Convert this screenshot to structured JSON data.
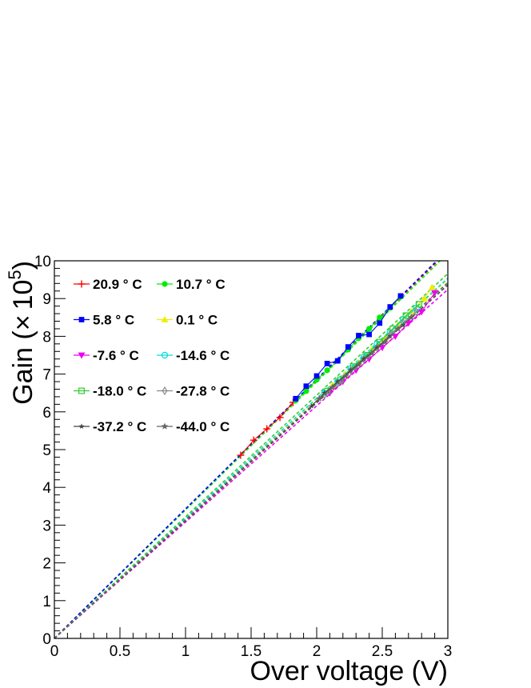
{
  "chart_data": {
    "type": "scatter",
    "title": "",
    "xlabel": "Over voltage (V)",
    "ylabel_text": "Gain (",
    "ylabel_times": "×",
    "ylabel_base": "10",
    "ylabel_exp": "5",
    "ylabel_close": ")",
    "xlim": [
      0,
      3
    ],
    "ylim": [
      0,
      10
    ],
    "x_ticks": [
      "0",
      "0.5",
      "1",
      "1.5",
      "2",
      "2.5",
      "3"
    ],
    "y_ticks": [
      "0",
      "1",
      "2",
      "3",
      "4",
      "5",
      "6",
      "7",
      "8",
      "9",
      "10"
    ],
    "grid": false,
    "legend_position": "top-left",
    "series": [
      {
        "name": "20.9 ° C",
        "color": "#ff0000",
        "marker": "plus",
        "x": [
          1.42,
          1.52,
          1.62,
          1.72,
          1.82
        ],
        "y": [
          4.85,
          5.25,
          5.55,
          5.85,
          6.25
        ],
        "fit_slope": 3.42
      },
      {
        "name": "10.7 ° C",
        "color": "#00ee00",
        "marker": "circle",
        "x": [
          1.84,
          1.92,
          2.0,
          2.08,
          2.16,
          2.24,
          2.32,
          2.4,
          2.48,
          2.56,
          2.64
        ],
        "y": [
          6.3,
          6.55,
          6.85,
          7.1,
          7.35,
          7.65,
          7.95,
          8.2,
          8.5,
          8.75,
          9.05
        ],
        "fit_slope": 3.4
      },
      {
        "name": "5.8 ° C",
        "color": "#0000ff",
        "marker": "square",
        "x": [
          1.84,
          1.92,
          2.0,
          2.08,
          2.16,
          2.24,
          2.32,
          2.4,
          2.48,
          2.56,
          2.64
        ],
        "y": [
          6.35,
          6.68,
          6.95,
          7.28,
          7.35,
          7.72,
          8.02,
          8.05,
          8.35,
          8.78,
          9.07
        ],
        "fit_slope": 3.43
      },
      {
        "name": "0.1 ° C",
        "color": "#eeee00",
        "marker": "triangle-up",
        "x": [
          2.12,
          2.22,
          2.32,
          2.42,
          2.52,
          2.62,
          2.72,
          2.82,
          2.88
        ],
        "y": [
          6.7,
          7.0,
          7.3,
          7.65,
          7.95,
          8.3,
          8.65,
          9.0,
          9.3
        ],
        "fit_slope": 3.17
      },
      {
        "name": "-7.6 ° C",
        "color": "#ee00ee",
        "marker": "triangle-down",
        "x": [
          2.1,
          2.2,
          2.3,
          2.4,
          2.5,
          2.6,
          2.7,
          2.8,
          2.9
        ],
        "y": [
          6.5,
          6.8,
          7.1,
          7.4,
          7.7,
          8.0,
          8.35,
          8.65,
          9.15
        ],
        "fit_slope": 3.08
      },
      {
        "name": "-14.6 ° C",
        "color": "#00dddd",
        "marker": "circle-open",
        "x": [
          2.06,
          2.16,
          2.26,
          2.36,
          2.46,
          2.56,
          2.66,
          2.76
        ],
        "y": [
          6.5,
          6.8,
          7.15,
          7.45,
          7.8,
          8.1,
          8.45,
          8.75
        ],
        "fit_slope": 3.18
      },
      {
        "name": "-18.0 ° C",
        "color": "#33cc33",
        "marker": "square-open",
        "x": [
          2.08,
          2.18,
          2.28,
          2.38,
          2.48,
          2.58,
          2.68,
          2.78
        ],
        "y": [
          6.55,
          6.85,
          7.2,
          7.5,
          7.85,
          8.2,
          8.55,
          8.85
        ],
        "fit_slope": 3.22
      },
      {
        "name": "-27.8 ° C",
        "color": "#888888",
        "marker": "diamond-open",
        "x": [
          2.06,
          2.16,
          2.26,
          2.36,
          2.46,
          2.56,
          2.66,
          2.76
        ],
        "y": [
          6.45,
          6.75,
          7.1,
          7.4,
          7.7,
          8.05,
          8.35,
          8.65
        ],
        "fit_slope": 3.14
      },
      {
        "name": "-37.2 ° C",
        "color": "#444444",
        "marker": "star-small",
        "x": [
          1.96,
          2.06,
          2.16,
          2.26,
          2.36,
          2.46,
          2.56,
          2.66
        ],
        "y": [
          6.15,
          6.5,
          6.8,
          7.1,
          7.4,
          7.7,
          8.0,
          8.3
        ],
        "fit_slope": 3.12
      },
      {
        "name": "-44.0 ° C",
        "color": "#666666",
        "marker": "star",
        "x": [
          2.02,
          2.12,
          2.22,
          2.32,
          2.42,
          2.52,
          2.62,
          2.72
        ],
        "y": [
          6.35,
          6.65,
          6.95,
          7.25,
          7.55,
          7.85,
          8.2,
          8.5
        ],
        "fit_slope": 3.14
      }
    ]
  }
}
